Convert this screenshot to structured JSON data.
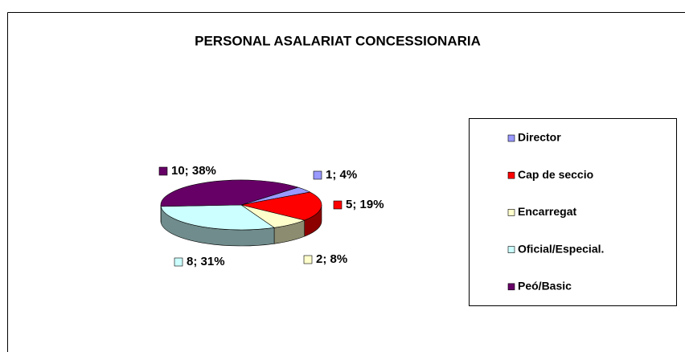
{
  "chart_data": {
    "type": "pie3d",
    "title": "PERSONAL  ASALARIAT CONCESSIONARIA",
    "categories": [
      "Director",
      "Cap de seccio",
      "Encarregat",
      "Oficial/Especial.",
      "Peó/Basic"
    ],
    "values": [
      1,
      5,
      2,
      8,
      10
    ],
    "value_labels": [
      "1; 4%",
      "5; 19%",
      "2; 8%",
      "8; 31%",
      "10; 38%"
    ],
    "colors": [
      "#9999ff",
      "#ff0000",
      "#ffffcc",
      "#ccffff",
      "#660066"
    ],
    "legend": "right"
  }
}
